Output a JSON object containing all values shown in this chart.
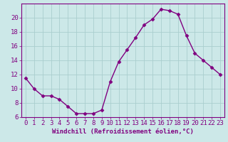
{
  "x": [
    0,
    1,
    2,
    3,
    4,
    5,
    6,
    7,
    8,
    9,
    10,
    11,
    12,
    13,
    14,
    15,
    16,
    17,
    18,
    19,
    20,
    21,
    22,
    23
  ],
  "y": [
    11.5,
    10.0,
    9.0,
    9.0,
    8.5,
    7.5,
    6.5,
    6.5,
    6.5,
    7.0,
    11.0,
    13.8,
    15.5,
    17.2,
    19.0,
    19.8,
    21.2,
    21.0,
    20.5,
    17.5,
    15.0,
    14.0,
    13.0,
    12.0
  ],
  "line_color": "#800080",
  "marker": "D",
  "marker_size": 2.5,
  "bg_color": "#cce8e8",
  "grid_color": "#aacece",
  "text_color": "#800080",
  "xlabel": "Windchill (Refroidissement éolien,°C)",
  "ylim": [
    6,
    22
  ],
  "xlim": [
    -0.5,
    23.5
  ],
  "yticks": [
    6,
    8,
    10,
    12,
    14,
    16,
    18,
    20
  ],
  "xticks": [
    0,
    1,
    2,
    3,
    4,
    5,
    6,
    7,
    8,
    9,
    10,
    11,
    12,
    13,
    14,
    15,
    16,
    17,
    18,
    19,
    20,
    21,
    22,
    23
  ],
  "xlabel_fontsize": 6.5,
  "tick_fontsize": 6.5,
  "linewidth": 1.0
}
